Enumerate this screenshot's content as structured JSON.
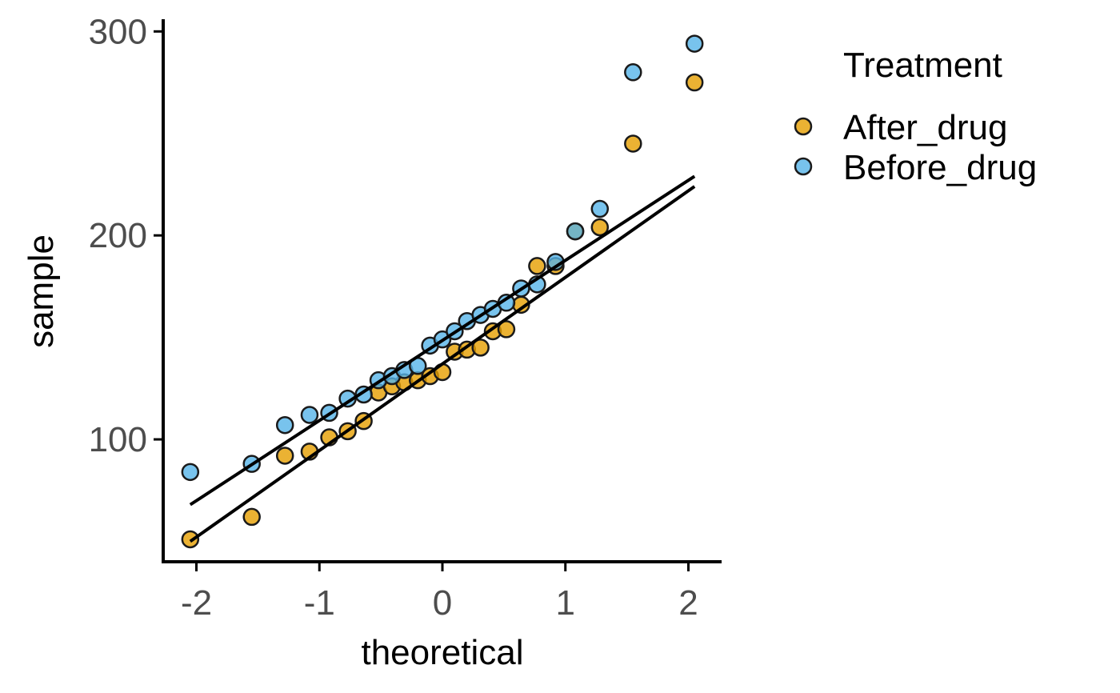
{
  "chart_data": {
    "type": "scatter",
    "xlabel": "theoretical",
    "ylabel": "sample",
    "xlim": [
      -2.27,
      2.27
    ],
    "ylim": [
      40,
      306
    ],
    "x_ticks": [
      -2,
      -1,
      0,
      1,
      2
    ],
    "y_ticks": [
      100,
      200,
      300
    ],
    "x_tick_labels": [
      "-2",
      "-1",
      "0",
      "1",
      "2"
    ],
    "y_tick_labels": [
      "100",
      "200",
      "300"
    ],
    "grid": false,
    "legend": {
      "title": "Treatment",
      "placement": "top-right",
      "entries": [
        "After_drug",
        "Before_drug"
      ]
    },
    "series": [
      {
        "name": "After_drug",
        "color": "#E69F00",
        "points": [
          [
            -2.05,
            51
          ],
          [
            -1.55,
            62
          ],
          [
            -1.28,
            92
          ],
          [
            -1.08,
            94
          ],
          [
            -0.92,
            101
          ],
          [
            -0.77,
            104
          ],
          [
            -0.64,
            109
          ],
          [
            -0.52,
            123
          ],
          [
            -0.41,
            126
          ],
          [
            -0.31,
            128
          ],
          [
            -0.2,
            129
          ],
          [
            -0.1,
            131
          ],
          [
            0.0,
            133
          ],
          [
            0.1,
            143
          ],
          [
            0.2,
            144
          ],
          [
            0.31,
            145
          ],
          [
            0.41,
            153
          ],
          [
            0.52,
            154
          ],
          [
            0.64,
            166
          ],
          [
            0.77,
            185
          ],
          [
            0.92,
            185
          ],
          [
            1.08,
            202
          ],
          [
            1.28,
            204
          ],
          [
            1.55,
            245
          ],
          [
            2.05,
            275
          ]
        ],
        "qq_line": [
          [
            -2.05,
            50
          ],
          [
            2.05,
            224
          ]
        ]
      },
      {
        "name": "Before_drug",
        "color": "#56B4E9",
        "points": [
          [
            -2.05,
            84
          ],
          [
            -1.55,
            88
          ],
          [
            -1.28,
            107
          ],
          [
            -1.08,
            112
          ],
          [
            -0.92,
            113
          ],
          [
            -0.77,
            120
          ],
          [
            -0.64,
            122
          ],
          [
            -0.52,
            129
          ],
          [
            -0.41,
            131
          ],
          [
            -0.31,
            134
          ],
          [
            -0.2,
            136
          ],
          [
            -0.1,
            146
          ],
          [
            0.0,
            149
          ],
          [
            0.1,
            153
          ],
          [
            0.2,
            158
          ],
          [
            0.31,
            161
          ],
          [
            0.41,
            164
          ],
          [
            0.52,
            167
          ],
          [
            0.64,
            174
          ],
          [
            0.77,
            176
          ],
          [
            0.92,
            187
          ],
          [
            1.08,
            202
          ],
          [
            1.28,
            213
          ],
          [
            1.55,
            280
          ],
          [
            2.05,
            294
          ]
        ],
        "qq_line": [
          [
            -2.05,
            68
          ],
          [
            2.05,
            229
          ]
        ]
      }
    ]
  }
}
